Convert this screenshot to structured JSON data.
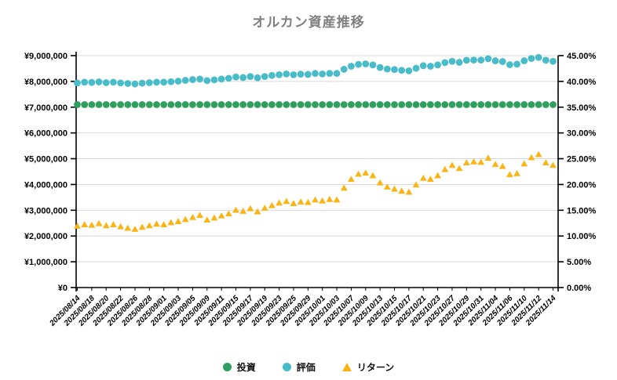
{
  "title": "オルカン資産推移",
  "legend": {
    "items": [
      {
        "label": "投資",
        "marker": "circle",
        "color": "#2f9e5f"
      },
      {
        "label": "評価",
        "marker": "circle",
        "color": "#49bcc9"
      },
      {
        "label": "リターン",
        "marker": "triangle",
        "color": "#fbb416"
      }
    ]
  },
  "colors": {
    "grid": "#d9d9d9",
    "axis": "#000000",
    "title": "#808080"
  },
  "chart_data": {
    "type": "scatter",
    "title": "オルカン資産推移",
    "point_count": 67,
    "x_tick_every": 2,
    "x_tick_labels": [
      "2025/08/14",
      "2025/08/18",
      "2025/08/20",
      "2025/08/22",
      "2025/08/26",
      "2025/08/28",
      "2025/09/01",
      "2025/09/03",
      "2025/09/05",
      "2025/09/09",
      "2025/09/11",
      "2025/09/15",
      "2025/09/17",
      "2025/09/19",
      "2025/09/23",
      "2025/09/25",
      "2025/09/29",
      "2025/10/01",
      "2025/10/03",
      "2025/10/07",
      "2025/10/09",
      "2025/10/13",
      "2025/10/15",
      "2025/10/17",
      "2025/10/21",
      "2025/10/23",
      "2025/10/27",
      "2025/10/29",
      "2025/10/31",
      "2025/11/04",
      "2025/11/06",
      "2025/11/10",
      "2025/11/12",
      "2025/11/14"
    ],
    "left_axis": {
      "min": 0,
      "max": 9000000,
      "step": 1000000,
      "tick_labels": [
        "¥0",
        "¥1,000,000",
        "¥2,000,000",
        "¥3,000,000",
        "¥4,000,000",
        "¥5,000,000",
        "¥6,000,000",
        "¥7,000,000",
        "¥8,000,000",
        "¥9,000,000"
      ]
    },
    "right_axis": {
      "min": 0,
      "max": 45,
      "step": 5,
      "tick_labels": [
        "0.00%",
        "5.00%",
        "10.00%",
        "15.00%",
        "20.00%",
        "25.00%",
        "30.00%",
        "35.00%",
        "40.00%",
        "45.00%"
      ]
    },
    "grid": true,
    "legend_position": "bottom",
    "series": [
      {
        "name": "投資",
        "axis": "left",
        "marker": "circle",
        "color": "#2f9e5f",
        "constant_value": 7100000
      },
      {
        "name": "評価",
        "axis": "left",
        "marker": "circle",
        "color": "#49bcc9",
        "values": [
          7940000,
          7970000,
          7960000,
          7980000,
          7950000,
          7970000,
          7940000,
          7920000,
          7900000,
          7930000,
          7950000,
          7970000,
          7970000,
          7990000,
          8010000,
          8040000,
          8070000,
          8090000,
          8030000,
          8060000,
          8090000,
          8120000,
          8170000,
          8150000,
          8190000,
          8140000,
          8190000,
          8230000,
          8260000,
          8290000,
          8260000,
          8280000,
          8270000,
          8310000,
          8290000,
          8310000,
          8310000,
          8470000,
          8590000,
          8660000,
          8680000,
          8640000,
          8540000,
          8480000,
          8460000,
          8430000,
          8410000,
          8510000,
          8610000,
          8590000,
          8640000,
          8730000,
          8780000,
          8740000,
          8820000,
          8830000,
          8830000,
          8880000,
          8800000,
          8770000,
          8650000,
          8670000,
          8800000,
          8890000,
          8930000,
          8820000,
          8780000
        ]
      },
      {
        "name": "リターン",
        "axis": "right",
        "marker": "triangle",
        "color": "#fbb416",
        "values": [
          11.9,
          12.2,
          12.1,
          12.4,
          12.0,
          12.2,
          11.8,
          11.5,
          11.3,
          11.7,
          12.0,
          12.3,
          12.2,
          12.6,
          12.8,
          13.2,
          13.6,
          14.0,
          13.1,
          13.5,
          13.9,
          14.3,
          15.0,
          14.8,
          15.3,
          14.7,
          15.4,
          15.9,
          16.4,
          16.7,
          16.3,
          16.6,
          16.5,
          17.0,
          16.8,
          17.1,
          17.0,
          19.3,
          21.0,
          22.0,
          22.2,
          21.7,
          20.3,
          19.5,
          19.1,
          18.7,
          18.5,
          19.9,
          21.2,
          21.0,
          21.7,
          22.9,
          23.7,
          23.1,
          24.2,
          24.4,
          24.3,
          25.1,
          23.9,
          23.5,
          21.9,
          22.1,
          24.0,
          25.2,
          25.8,
          24.2,
          23.7
        ]
      }
    ]
  }
}
